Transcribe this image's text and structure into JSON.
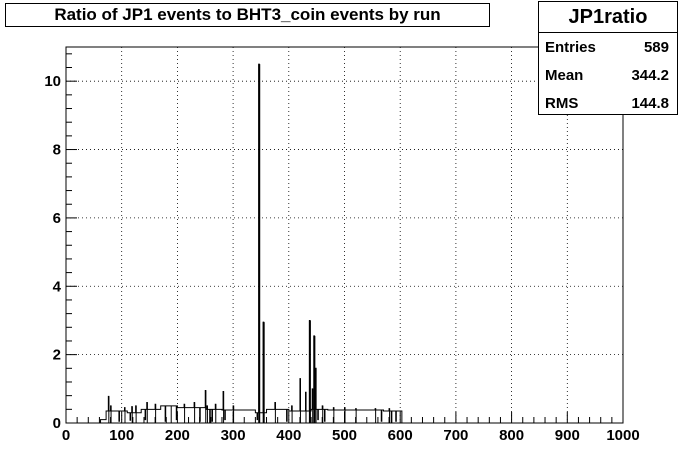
{
  "chart_data": {
    "type": "histogram",
    "title": "Ratio of JP1 events to BHT3_coin events by run",
    "xlabel": "",
    "ylabel": "",
    "xlim": [
      0,
      1000
    ],
    "ylim": [
      0,
      11
    ],
    "x_ticks": [
      0,
      100,
      200,
      300,
      400,
      500,
      600,
      700,
      800,
      900,
      1000
    ],
    "y_ticks": [
      0,
      2,
      4,
      6,
      8,
      10
    ],
    "grid": true,
    "bin_width": 1,
    "line_color": "#000000",
    "stats": {
      "name": "JP1ratio",
      "rows": [
        {
          "label": "Entries",
          "value": "589"
        },
        {
          "label": "Mean",
          "value": "344.2"
        },
        {
          "label": "RMS",
          "value": "144.8"
        }
      ]
    },
    "baseline_segments": [
      {
        "from": 62,
        "to": 72,
        "value": 0.1
      },
      {
        "from": 72,
        "to": 110,
        "value": 0.35
      },
      {
        "from": 110,
        "to": 135,
        "value": 0.3
      },
      {
        "from": 135,
        "to": 170,
        "value": 0.4
      },
      {
        "from": 170,
        "to": 200,
        "value": 0.5
      },
      {
        "from": 200,
        "to": 250,
        "value": 0.45
      },
      {
        "from": 250,
        "to": 280,
        "value": 0.4
      },
      {
        "from": 280,
        "to": 340,
        "value": 0.38
      },
      {
        "from": 340,
        "to": 360,
        "value": 0.3
      },
      {
        "from": 360,
        "to": 400,
        "value": 0.4
      },
      {
        "from": 400,
        "to": 440,
        "value": 0.35
      },
      {
        "from": 440,
        "to": 470,
        "value": 0.4
      },
      {
        "from": 470,
        "to": 570,
        "value": 0.38
      },
      {
        "from": 570,
        "to": 603,
        "value": 0.35
      }
    ],
    "spikes": [
      {
        "x": 76,
        "value": 0.78
      },
      {
        "x": 80,
        "value": 0.5
      },
      {
        "x": 105,
        "value": 0.45
      },
      {
        "x": 118,
        "value": 0.48
      },
      {
        "x": 125,
        "value": 0.5
      },
      {
        "x": 145,
        "value": 0.6
      },
      {
        "x": 160,
        "value": 0.55
      },
      {
        "x": 188,
        "value": 0.5
      },
      {
        "x": 212,
        "value": 0.55
      },
      {
        "x": 230,
        "value": 0.6
      },
      {
        "x": 250,
        "value": 0.95
      },
      {
        "x": 253,
        "value": 0.5
      },
      {
        "x": 268,
        "value": 0.55
      },
      {
        "x": 282,
        "value": 0.92
      },
      {
        "x": 300,
        "value": 0.5
      },
      {
        "x": 346,
        "value": 10.5
      },
      {
        "x": 354,
        "value": 2.95
      },
      {
        "x": 375,
        "value": 0.6
      },
      {
        "x": 405,
        "value": 0.5
      },
      {
        "x": 420,
        "value": 1.3
      },
      {
        "x": 430,
        "value": 0.9
      },
      {
        "x": 437,
        "value": 3.0
      },
      {
        "x": 442,
        "value": 1.0
      },
      {
        "x": 445,
        "value": 2.55
      },
      {
        "x": 448,
        "value": 1.6
      },
      {
        "x": 460,
        "value": 0.5
      },
      {
        "x": 480,
        "value": 0.45
      },
      {
        "x": 500,
        "value": 0.45
      },
      {
        "x": 520,
        "value": 0.42
      },
      {
        "x": 555,
        "value": 0.42
      },
      {
        "x": 580,
        "value": 0.42
      }
    ],
    "dips": [
      {
        "x": 95,
        "value": 0.05
      },
      {
        "x": 115,
        "value": 0.08
      },
      {
        "x": 142,
        "value": 0.1
      },
      {
        "x": 178,
        "value": 0.05
      },
      {
        "x": 198,
        "value": 0.1
      },
      {
        "x": 240,
        "value": 0.05
      },
      {
        "x": 258,
        "value": 0.0
      },
      {
        "x": 262,
        "value": 0.05
      },
      {
        "x": 285,
        "value": 0.1
      },
      {
        "x": 343,
        "value": 0.1
      },
      {
        "x": 396,
        "value": 0.05
      },
      {
        "x": 430,
        "value": 0.05
      },
      {
        "x": 452,
        "value": 0.1
      },
      {
        "x": 464,
        "value": 0.05
      },
      {
        "x": 566,
        "value": 0.05
      },
      {
        "x": 584,
        "value": 0.0
      },
      {
        "x": 592,
        "value": 0.05
      }
    ]
  }
}
